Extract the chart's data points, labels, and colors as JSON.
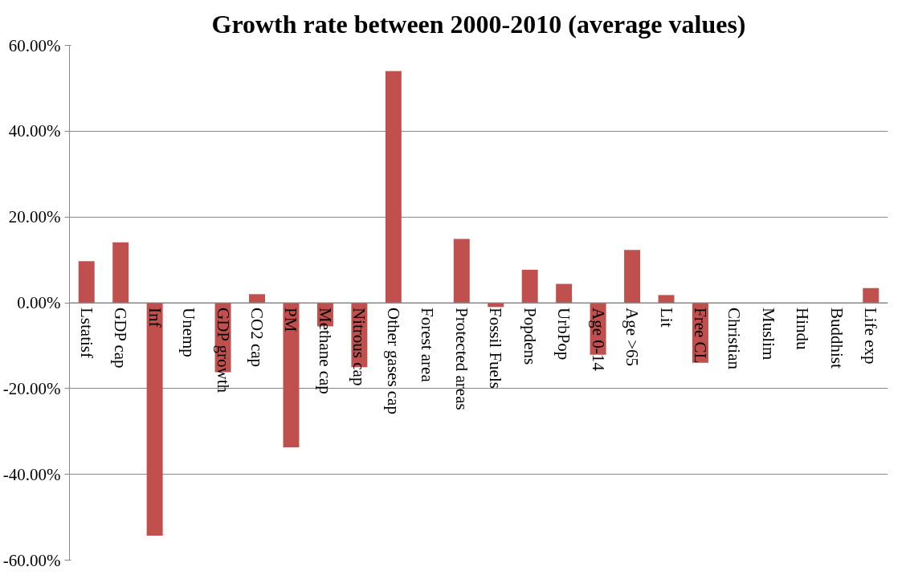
{
  "chart_data": {
    "type": "bar",
    "title": "Growth rate between 2000-2010 (average values)",
    "categories": [
      "Lstatisf",
      "GDP cap",
      "Inf",
      "Unemp",
      "GDP growth",
      "CO2 cap",
      "PM",
      "Methane cap",
      "Nitrous cap",
      "Other gases cap",
      "Forest area",
      "Protected areas",
      "Fossil Fuels",
      "Popdens",
      "UrbPop",
      "Age 0-14",
      "Age >65",
      "Lit",
      "Free CL",
      "Christian",
      "Muslim",
      "Hindu",
      "Buddhist",
      "Life exp"
    ],
    "values": [
      9.7,
      14.1,
      -54.3,
      0,
      -16.2,
      2.0,
      -33.7,
      -5.5,
      -15.0,
      54.0,
      0,
      14.9,
      -1.0,
      7.7,
      4.4,
      -12.1,
      12.3,
      1.8,
      -14.0,
      0,
      0,
      0,
      0,
      3.4
    ],
    "color": "#c0504d",
    "ylim": [
      -60,
      60
    ],
    "yticks": [
      {
        "value": -60,
        "label": "-60.00%"
      },
      {
        "value": -40,
        "label": "-40.00%"
      },
      {
        "value": -20,
        "label": "-20.00%"
      },
      {
        "value": 0,
        "label": "0.00%"
      },
      {
        "value": 20,
        "label": "20.00%"
      },
      {
        "value": 40,
        "label": "40.00%"
      },
      {
        "value": 60,
        "label": "60.00%"
      }
    ],
    "grid": "y"
  }
}
